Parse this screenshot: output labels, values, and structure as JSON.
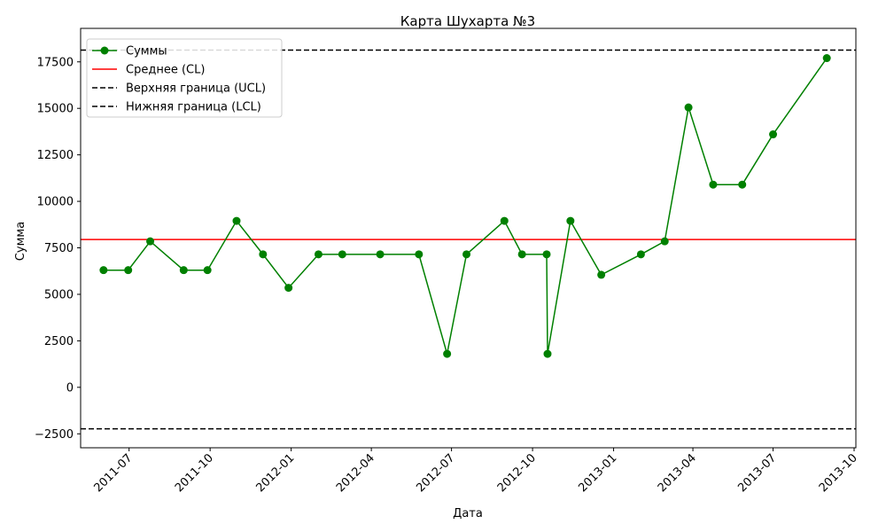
{
  "chart_data": {
    "type": "line",
    "title": "Карта Шухарта №3",
    "xlabel": "Дата",
    "ylabel": "Сумма",
    "x_type": "date",
    "xlim": [
      "2011-05-07",
      "2013-10-03"
    ],
    "ylim": [
      -3250,
      19300
    ],
    "x_ticks": [
      "2011-07-01",
      "2011-10-01",
      "2012-01-01",
      "2012-04-01",
      "2012-07-01",
      "2012-10-01",
      "2013-01-01",
      "2013-04-01",
      "2013-07-01",
      "2013-10-01"
    ],
    "x_tick_labels": [
      "2011-07",
      "2011-10",
      "2012-01",
      "2012-04",
      "2012-07",
      "2012-10",
      "2013-01",
      "2013-04",
      "2013-07",
      "2013-10"
    ],
    "y_ticks": [
      -2500,
      0,
      2500,
      5000,
      7500,
      10000,
      12500,
      15000,
      17500
    ],
    "y_tick_labels": [
      "−2500",
      "0",
      "2500",
      "5000",
      "7500",
      "10000",
      "12500",
      "15000",
      "17500"
    ],
    "grid": false,
    "legend_position": "upper-left",
    "series": [
      {
        "name": "Суммы",
        "color": "#008000",
        "marker": "circle",
        "points": [
          {
            "x": "2011-06-02",
            "y": 6300
          },
          {
            "x": "2011-06-30",
            "y": 6300
          },
          {
            "x": "2011-07-25",
            "y": 7850
          },
          {
            "x": "2011-09-01",
            "y": 6300
          },
          {
            "x": "2011-09-28",
            "y": 6300
          },
          {
            "x": "2011-10-31",
            "y": 8950
          },
          {
            "x": "2011-11-30",
            "y": 7150
          },
          {
            "x": "2011-12-29",
            "y": 5350
          },
          {
            "x": "2012-02-01",
            "y": 7150
          },
          {
            "x": "2012-02-28",
            "y": 7150
          },
          {
            "x": "2012-04-11",
            "y": 7150
          },
          {
            "x": "2012-05-25",
            "y": 7150
          },
          {
            "x": "2012-06-26",
            "y": 1800
          },
          {
            "x": "2012-07-18",
            "y": 7150
          },
          {
            "x": "2012-08-30",
            "y": 8950
          },
          {
            "x": "2012-09-19",
            "y": 7150
          },
          {
            "x": "2012-10-17",
            "y": 7150
          },
          {
            "x": "2012-10-18",
            "y": 1800
          },
          {
            "x": "2012-11-13",
            "y": 8950
          },
          {
            "x": "2012-12-18",
            "y": 6050
          },
          {
            "x": "2013-02-01",
            "y": 7150
          },
          {
            "x": "2013-02-28",
            "y": 7850
          },
          {
            "x": "2013-03-27",
            "y": 15050
          },
          {
            "x": "2013-04-24",
            "y": 10900
          },
          {
            "x": "2013-05-27",
            "y": 10900
          },
          {
            "x": "2013-07-01",
            "y": 13600
          },
          {
            "x": "2013-08-31",
            "y": 17700
          }
        ]
      },
      {
        "name": "Среднее (CL)",
        "color": "#ff0000",
        "style": "solid",
        "y": 7950
      },
      {
        "name": "Верхняя граница (UCL)",
        "color": "#000000",
        "style": "dashed",
        "y": 18130
      },
      {
        "name": "Нижняя граница (LCL)",
        "color": "#000000",
        "style": "dashed",
        "y": -2230
      }
    ]
  }
}
